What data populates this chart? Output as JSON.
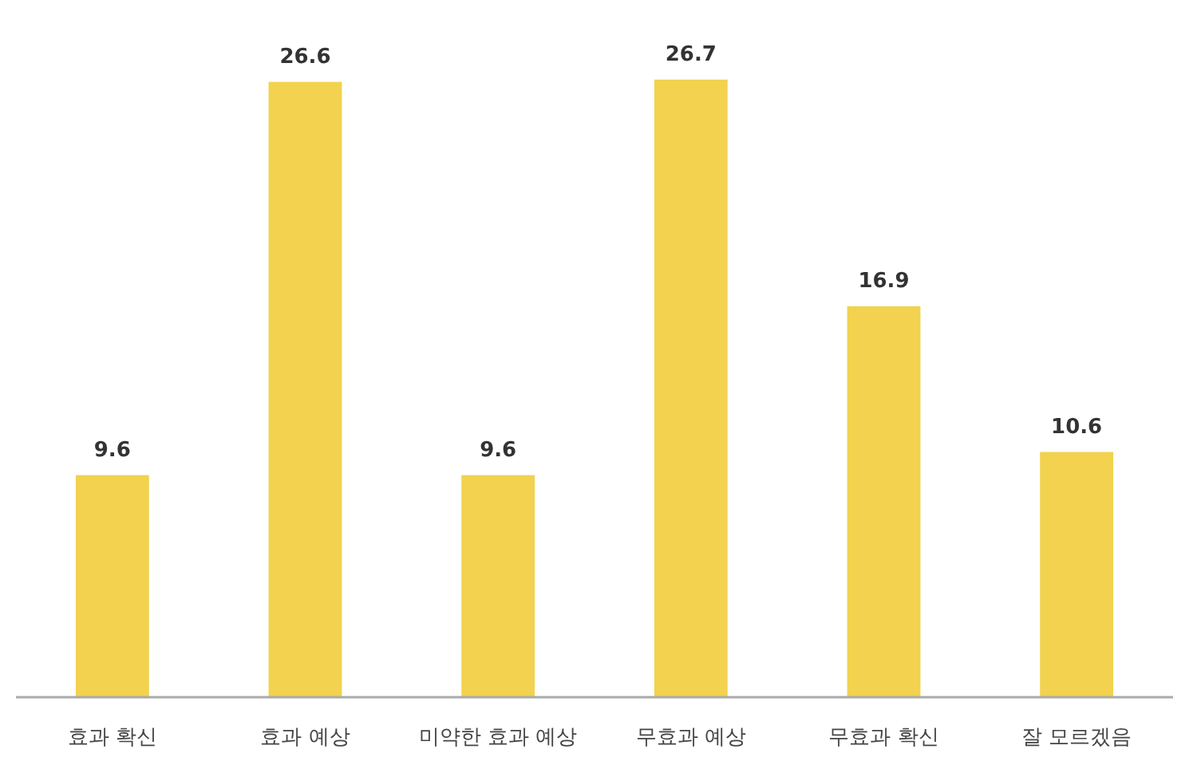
{
  "chart_data": {
    "type": "bar",
    "categories": [
      "효과 확신",
      "효과 예상",
      "미약한 효과 예상",
      "무효과 예상",
      "무효과 확신",
      "잘 모르겠음"
    ],
    "values": [
      9.6,
      26.6,
      9.6,
      26.7,
      16.9,
      10.6
    ],
    "color": "#f2d24e",
    "data_labels": true
  }
}
